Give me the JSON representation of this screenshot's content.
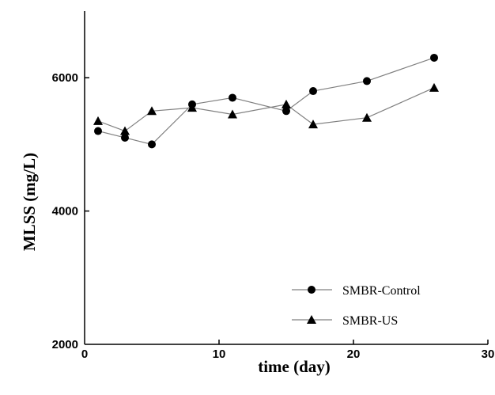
{
  "chart_data": {
    "type": "line",
    "xlabel": "time (day)",
    "ylabel": "MLSS (mg/L)",
    "xlim": [
      0,
      30
    ],
    "ylim": [
      2000,
      7000
    ],
    "x_ticks": [
      0,
      10,
      20,
      30
    ],
    "y_ticks": [
      2000,
      4000,
      6000
    ],
    "grid": false,
    "legend_position": "bottom-right",
    "series": [
      {
        "name": "SMBR-Control",
        "marker": "circle",
        "x": [
          1,
          3,
          5,
          8,
          11,
          15,
          17,
          21,
          26
        ],
        "y": [
          5200,
          5100,
          5000,
          5600,
          5700,
          5500,
          5800,
          5950,
          6300
        ]
      },
      {
        "name": "SMBR-US",
        "marker": "triangle",
        "x": [
          1,
          3,
          5,
          8,
          11,
          15,
          17,
          21,
          26
        ],
        "y": [
          5350,
          5200,
          5500,
          5550,
          5450,
          5600,
          5300,
          5400,
          5850
        ]
      }
    ],
    "colors": {
      "line": "#808080",
      "marker": "#000000",
      "axis": "#000000"
    }
  }
}
